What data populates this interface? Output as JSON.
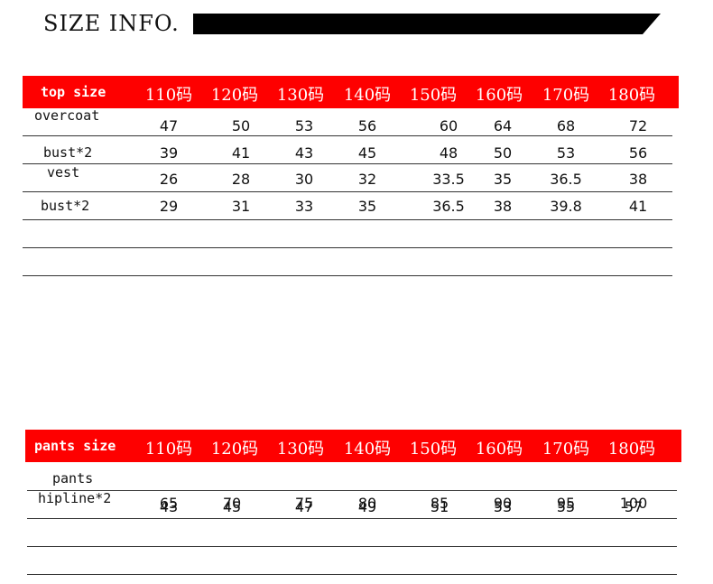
{
  "header": {
    "title": "SIZE INFO."
  },
  "tables": [
    {
      "label": "top size",
      "sizes": [
        "110码",
        "120码",
        "130码",
        "140码",
        "150码",
        "160码",
        "170码",
        "180码"
      ],
      "rows": [
        {
          "label": "overcoat",
          "values": [
            "47",
            "50",
            "53",
            "56",
            "60",
            "64",
            "68",
            "72"
          ]
        },
        {
          "label": "bust*2",
          "values": [
            "39",
            "41",
            "43",
            "45",
            "48",
            "50",
            "53",
            "56"
          ]
        },
        {
          "label": "vest",
          "values": [
            "26",
            "28",
            "30",
            "32",
            "33.5",
            "35",
            "36.5",
            "38"
          ]
        },
        {
          "label": "bust*2",
          "values": [
            "29",
            "31",
            "33",
            "35",
            "36.5",
            "38",
            "39.8",
            "41"
          ]
        }
      ]
    },
    {
      "label": "pants size",
      "sizes": [
        "110码",
        "120码",
        "130码",
        "140码",
        "150码",
        "160码",
        "170码",
        "180码"
      ],
      "rows": [
        {
          "label": "pants",
          "values": [
            "65",
            "70",
            "75",
            "80",
            "85",
            "90",
            "95",
            "100"
          ]
        },
        {
          "label": "hipline*2",
          "values": [
            "43",
            "45",
            "47",
            "49",
            "51",
            "53",
            "55",
            "57"
          ]
        }
      ]
    }
  ]
}
